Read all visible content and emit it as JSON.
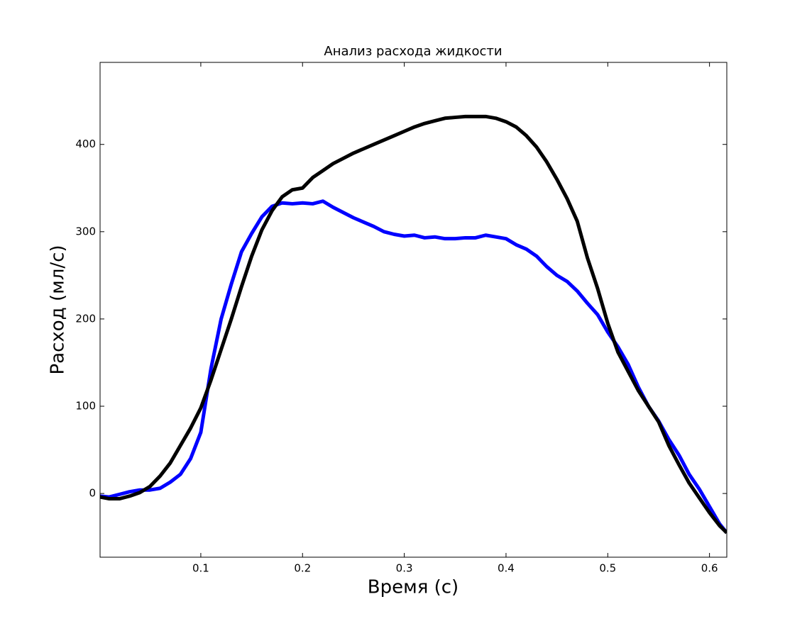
{
  "chart_data": {
    "type": "line",
    "title": "Анализ расхода жидкости",
    "x_label": "Время (с)",
    "y_label": "Расход (мл/с)",
    "x": [
      0.001,
      0.01,
      0.02,
      0.03,
      0.04,
      0.05,
      0.06,
      0.07,
      0.08,
      0.09,
      0.1,
      0.11,
      0.12,
      0.13,
      0.14,
      0.15,
      0.16,
      0.17,
      0.18,
      0.19,
      0.2,
      0.21,
      0.22,
      0.23,
      0.24,
      0.25,
      0.26,
      0.27,
      0.28,
      0.29,
      0.3,
      0.31,
      0.32,
      0.33,
      0.34,
      0.35,
      0.36,
      0.37,
      0.38,
      0.39,
      0.4,
      0.41,
      0.42,
      0.43,
      0.44,
      0.45,
      0.46,
      0.47,
      0.48,
      0.49,
      0.5,
      0.51,
      0.52,
      0.53,
      0.54,
      0.55,
      0.56,
      0.57,
      0.58,
      0.59,
      0.6,
      0.61,
      0.617
    ],
    "series": [
      {
        "color": "#0000ff",
        "values": [
          -3,
          -4,
          -1,
          2,
          4,
          4,
          6,
          13,
          22,
          40,
          70,
          143,
          200,
          240,
          277,
          298,
          317,
          329,
          333,
          332,
          333,
          332,
          335,
          328,
          322,
          316,
          311,
          306,
          300,
          297,
          295,
          296,
          293,
          294,
          292,
          292,
          293,
          293,
          296,
          294,
          292,
          285,
          280,
          272,
          260,
          250,
          243,
          232,
          218,
          205,
          185,
          168,
          148,
          122,
          100,
          83,
          62,
          44,
          22,
          5,
          -15,
          -35,
          -45
        ]
      },
      {
        "color": "#000000",
        "values": [
          -4,
          -6,
          -6,
          -3,
          1,
          8,
          20,
          35,
          55,
          75,
          98,
          130,
          165,
          200,
          237,
          272,
          302,
          324,
          340,
          348,
          350,
          362,
          370,
          378,
          384,
          390,
          395,
          400,
          405,
          410,
          415,
          420,
          424,
          427,
          430,
          431,
          432,
          432,
          432,
          430,
          426,
          420,
          410,
          397,
          380,
          360,
          338,
          312,
          270,
          235,
          195,
          162,
          140,
          118,
          100,
          82,
          55,
          33,
          12,
          -5,
          -22,
          -37,
          -45
        ]
      }
    ],
    "xlim": [
      0.001,
      0.617
    ],
    "ylim": [
      -73,
      494
    ],
    "xticks": [
      0.1,
      0.2,
      0.3,
      0.4,
      0.5,
      0.6
    ],
    "yticks": [
      0,
      100,
      200,
      300,
      400
    ]
  }
}
